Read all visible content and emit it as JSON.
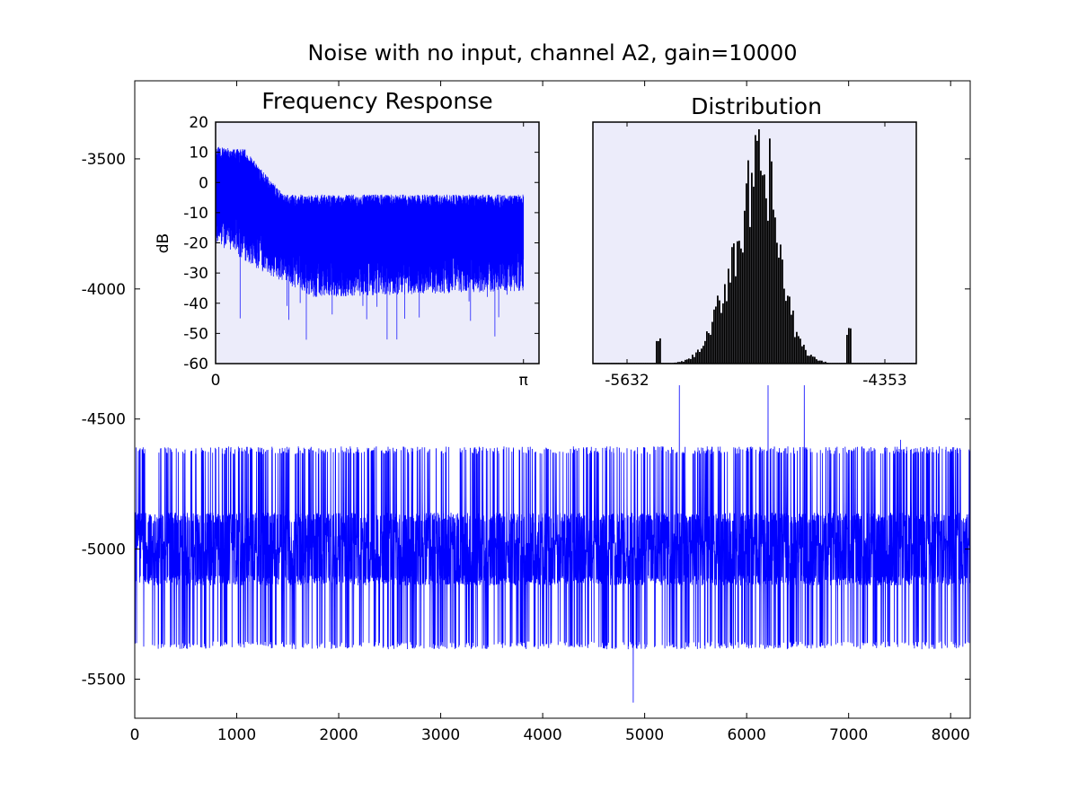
{
  "chart_data": [
    {
      "id": "time-series",
      "type": "line",
      "title": "Noise with no input, channel A2, gain=10000",
      "xlabel": "",
      "ylabel": "",
      "xlim": [
        0,
        8192
      ],
      "ylim": [
        -5650,
        -3200
      ],
      "xticks": [
        0,
        1000,
        2000,
        3000,
        4000,
        5000,
        6000,
        7000,
        8000
      ],
      "yticks": [
        -5500,
        -5000,
        -4500,
        -4000,
        -3500
      ],
      "xtick_labels": [
        "0",
        "1000",
        "2000",
        "3000",
        "4000",
        "5000",
        "6000",
        "7000",
        "8000"
      ],
      "ytick_labels": [
        "-5500",
        "-5000",
        "-4500",
        "-4000",
        "-3500"
      ],
      "grid": false,
      "series": [
        {
          "color": "#0000ff",
          "n_samples": 8192,
          "baseline": -4990,
          "levels": [
            -5370,
            -5120,
            -4990,
            -4880,
            -4620
          ],
          "spikes": [
            {
              "x": 4888,
              "y": -5590
            },
            {
              "x": 5340,
              "y": -4370
            },
            {
              "x": 6210,
              "y": -4370
            },
            {
              "x": 6565,
              "y": -4370
            },
            {
              "x": 7510,
              "y": -4580
            }
          ]
        }
      ]
    },
    {
      "id": "frequency-response",
      "type": "line",
      "title": "Frequency Response",
      "xlabel": "",
      "ylabel": "dB",
      "xlim": [
        0,
        3.3
      ],
      "ylim": [
        -60,
        20
      ],
      "xticks": [
        0,
        3.14159
      ],
      "xtick_labels": [
        "0",
        "π"
      ],
      "yticks": [
        20,
        10,
        0,
        -10,
        -20,
        -30,
        -40,
        -50,
        -60
      ],
      "ytick_labels": [
        "20",
        "10",
        "0",
        "-10",
        "-20",
        "-30",
        "-40",
        "-50",
        "-60"
      ],
      "background": "#ececfa",
      "grid": false,
      "series": [
        {
          "color": "#0000ff",
          "x_range": [
            0,
            3.14159
          ],
          "upper_envelope": [
            [
              0,
              12
            ],
            [
              0.3,
              11
            ],
            [
              0.5,
              3
            ],
            [
              0.7,
              -4
            ],
            [
              3.14,
              -4
            ]
          ],
          "lower_envelope": [
            [
              0,
              -20
            ],
            [
              0.5,
              -30
            ],
            [
              1.0,
              -38
            ],
            [
              3.14,
              -36
            ]
          ],
          "dips": [
            [
              0.25,
              -45
            ],
            [
              1.75,
              -52
            ],
            [
              1.85,
              -52
            ],
            [
              2.85,
              -51
            ]
          ]
        }
      ]
    },
    {
      "id": "distribution",
      "type": "bar",
      "title": "Distribution",
      "xlim": [
        -5632,
        -4353
      ],
      "xticks": [
        -5632,
        -4353
      ],
      "xtick_labels": [
        "-5632",
        "-4353"
      ],
      "yticks": [],
      "background": "#ececfa",
      "grid": false,
      "series": [
        {
          "color": "#000000",
          "bins": 180,
          "components": [
            {
              "center": -5000,
              "sigma": 95,
              "weight": 1.0
            },
            {
              "center": -4935,
              "sigma": 40,
              "weight": 0.35
            }
          ],
          "edge_peaks": [
            {
              "x": -5370,
              "height": 0.16
            },
            {
              "x": -4620,
              "height": 0.2
            }
          ]
        }
      ]
    }
  ]
}
